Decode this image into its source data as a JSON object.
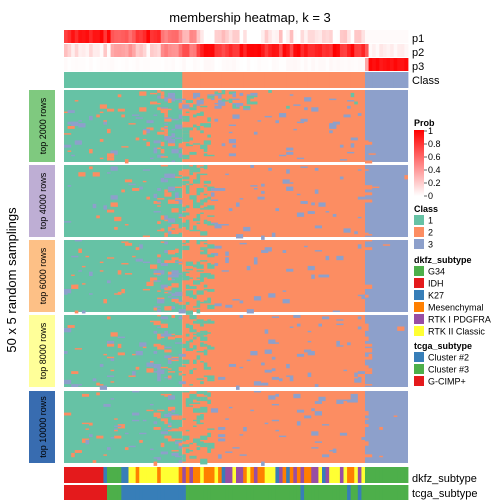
{
  "chart_data": {
    "type": "heatmap",
    "title": "membership heatmap, k = 3",
    "ylabel": "50 x 5 random samplings",
    "n_samples": 96,
    "annotation_rows": [
      "p1",
      "p2",
      "p3",
      "Class"
    ],
    "bottom_annotations": [
      "dkfz_subtype",
      "tcga_subtype"
    ],
    "row_groups": [
      "top 2000 rows",
      "top 4000 rows",
      "top 6000 rows",
      "top 8000 rows",
      "top 10000 rows"
    ],
    "rows_per_group": 50,
    "class_boundaries": {
      "class1_end_fraction": 0.34,
      "class2_end_fraction": 0.87
    },
    "prob_legend": {
      "title": "Prob",
      "ticks": [
        "1",
        "0.8",
        "0.6",
        "0.4",
        "0.2",
        "0"
      ]
    },
    "class_legend": {
      "title": "Class",
      "items": [
        {
          "label": "1",
          "color": "#66C2A5"
        },
        {
          "label": "2",
          "color": "#FC8D62"
        },
        {
          "label": "3",
          "color": "#8DA0CB"
        }
      ]
    },
    "dkfz_legend": {
      "title": "dkfz_subtype",
      "items": [
        {
          "label": "G34",
          "color": "#4DAF4A"
        },
        {
          "label": "IDH",
          "color": "#E41A1C"
        },
        {
          "label": "K27",
          "color": "#377EB8"
        },
        {
          "label": "Mesenchymal",
          "color": "#FF7F00"
        },
        {
          "label": "RTK I PDGFRA",
          "color": "#984EA3"
        },
        {
          "label": "RTK II Classic",
          "color": "#FFFF33"
        }
      ]
    },
    "tcga_legend": {
      "title": "tcga_subtype",
      "items": [
        {
          "label": "Cluster #2",
          "color": "#377EB8"
        },
        {
          "label": "Cluster #3",
          "color": "#4DAF4A"
        },
        {
          "label": "G-CIMP+",
          "color": "#E41A1C"
        }
      ]
    }
  }
}
